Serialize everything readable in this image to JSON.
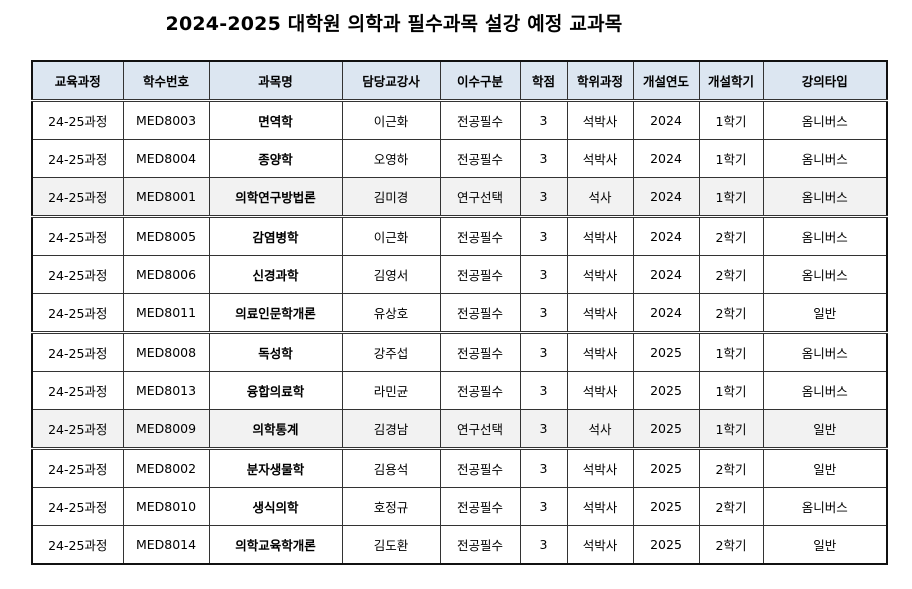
{
  "title": "2024-2025 대학원 의학과 필수과목 설강 예정 교과목",
  "headers": [
    "교육과정",
    "학수번호",
    "과목명",
    "담당교강사",
    "이수구분",
    "학점",
    "학위과정",
    "개설연도",
    "개설학기",
    "강의타입"
  ],
  "rows": [
    [
      "24-25과정",
      "MED8003",
      "면역학",
      "이근화",
      "전공필수",
      "3",
      "석박사",
      "2024",
      "1학기",
      "옴니버스"
    ],
    [
      "24-25과정",
      "MED8004",
      "종양학",
      "오영하",
      "전공필수",
      "3",
      "석박사",
      "2024",
      "1학기",
      "옴니버스"
    ],
    [
      "24-25과정",
      "MED8001",
      "의학연구방법론",
      "김미경",
      "연구선택",
      "3",
      "석사",
      "2024",
      "1학기",
      "옴니버스"
    ],
    [
      "24-25과정",
      "MED8005",
      "감염병학",
      "이근화",
      "전공필수",
      "3",
      "석박사",
      "2024",
      "2학기",
      "옴니버스"
    ],
    [
      "24-25과정",
      "MED8006",
      "신경과학",
      "김영서",
      "전공필수",
      "3",
      "석박사",
      "2024",
      "2학기",
      "옴니버스"
    ],
    [
      "24-25과정",
      "MED8011",
      "의료인문학개론",
      "유상호",
      "전공필수",
      "3",
      "석박사",
      "2024",
      "2학기",
      "일반"
    ],
    [
      "24-25과정",
      "MED8008",
      "독성학",
      "강주섭",
      "전공필수",
      "3",
      "석박사",
      "2025",
      "1학기",
      "옴니버스"
    ],
    [
      "24-25과정",
      "MED8013",
      "융합의료학",
      "라민균",
      "전공필수",
      "3",
      "석박사",
      "2025",
      "1학기",
      "옴니버스"
    ],
    [
      "24-25과정",
      "MED8009",
      "의학통계",
      "김경남",
      "연구선택",
      "3",
      "석사",
      "2025",
      "1학기",
      "일반"
    ],
    [
      "24-25과정",
      "MED8002",
      "분자생물학",
      "김용석",
      "전공필수",
      "3",
      "석박사",
      "2025",
      "2학기",
      "일반"
    ],
    [
      "24-25과정",
      "MED8010",
      "생식의학",
      "호정규",
      "전공필수",
      "3",
      "석박사",
      "2025",
      "2학기",
      "옴니버스"
    ],
    [
      "24-25과정",
      "MED8014",
      "의학교육학개론",
      "김도환",
      "전공필수",
      "3",
      "석박사",
      "2025",
      "2학기",
      "일반"
    ]
  ]
}
